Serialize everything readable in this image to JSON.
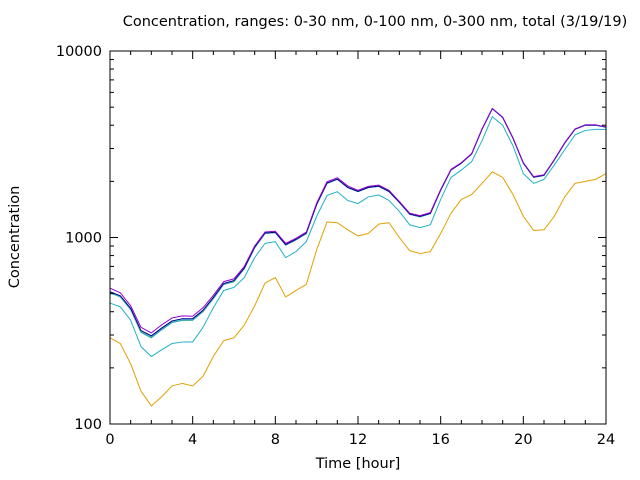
{
  "chart_data": {
    "type": "line",
    "title": "Concentration, ranges: 0-30 nm, 0-100 nm, 0-300 nm, total (3/19/19)",
    "xlabel": "Time [hour]",
    "ylabel": "Concentration",
    "xlim": [
      0,
      24
    ],
    "ylim": [
      100,
      10000
    ],
    "yscale": "log",
    "grid": false,
    "x_ticks": [
      0,
      4,
      8,
      12,
      16,
      20,
      24
    ],
    "y_ticks": [
      100,
      1000,
      10000
    ],
    "x": [
      0,
      0.5,
      1,
      1.5,
      2,
      2.5,
      3,
      3.5,
      4,
      4.5,
      5,
      5.5,
      6,
      6.5,
      7,
      7.5,
      8,
      8.5,
      9,
      9.5,
      10,
      10.5,
      11,
      11.5,
      12,
      12.5,
      13,
      13.5,
      14,
      14.5,
      15,
      15.5,
      16,
      16.5,
      17,
      17.5,
      18,
      18.5,
      19,
      19.5,
      20,
      20.5,
      21,
      21.5,
      22,
      22.5,
      23,
      23.5,
      24
    ],
    "series": [
      {
        "color": "#e0a000",
        "values": [
          290,
          270,
          210,
          150,
          125,
          140,
          160,
          165,
          160,
          180,
          230,
          280,
          290,
          340,
          430,
          570,
          610,
          480,
          520,
          560,
          860,
          1210,
          1200,
          1100,
          1020,
          1050,
          1180,
          1200,
          1000,
          850,
          820,
          840,
          1050,
          1350,
          1600,
          1700,
          1950,
          2250,
          2100,
          1700,
          1300,
          1090,
          1100,
          1300,
          1650,
          1950,
          2000,
          2050,
          2200
        ]
      },
      {
        "color": "#20b0c8",
        "values": [
          445,
          425,
          360,
          260,
          230,
          250,
          270,
          275,
          275,
          330,
          420,
          520,
          540,
          610,
          780,
          930,
          950,
          780,
          840,
          950,
          1300,
          1680,
          1760,
          1580,
          1520,
          1650,
          1690,
          1580,
          1380,
          1170,
          1130,
          1170,
          1600,
          2100,
          2300,
          2550,
          3300,
          4450,
          4000,
          3100,
          2200,
          1950,
          2050,
          2450,
          2950,
          3550,
          3750,
          3800,
          3800
        ]
      },
      {
        "color": "#009e73",
        "values": [
          505,
          480,
          410,
          310,
          290,
          320,
          350,
          360,
          360,
          400,
          470,
          560,
          580,
          680,
          880,
          1050,
          1060,
          910,
          970,
          1050,
          1500,
          1950,
          2050,
          1850,
          1760,
          1850,
          1880,
          1760,
          1540,
          1330,
          1290,
          1340,
          1790,
          2300,
          2500,
          2800,
          3800,
          4900,
          4400,
          3400,
          2500,
          2100,
          2150,
          2600,
          3200,
          3800,
          4000,
          4000,
          3900
        ]
      },
      {
        "color": "#56b4e9",
        "values": [
          508,
          483,
          413,
          313,
          293,
          323,
          353,
          363,
          363,
          403,
          473,
          563,
          583,
          683,
          883,
          1053,
          1063,
          913,
          973,
          1053,
          1503,
          1953,
          2053,
          1853,
          1763,
          1853,
          1883,
          1763,
          1543,
          1333,
          1293,
          1343,
          1793,
          2303,
          2503,
          2803,
          3803,
          4903,
          4403,
          3403,
          2503,
          2103,
          2153,
          2603,
          3203,
          3803,
          4003,
          4003,
          3903
        ]
      },
      {
        "color": "#000080",
        "values": [
          512,
          487,
          417,
          317,
          297,
          327,
          357,
          367,
          367,
          407,
          477,
          567,
          587,
          687,
          887,
          1057,
          1067,
          917,
          977,
          1057,
          1507,
          1957,
          2057,
          1857,
          1767,
          1857,
          1887,
          1767,
          1547,
          1337,
          1297,
          1347,
          1797,
          2307,
          2507,
          2807,
          3807,
          4907,
          4407,
          3407,
          2507,
          2107,
          2157,
          2607,
          3207,
          3807,
          4007,
          4007,
          3907
        ]
      },
      {
        "color": "#9400d3",
        "values": [
          535,
          505,
          430,
          330,
          308,
          340,
          370,
          380,
          378,
          420,
          490,
          580,
          600,
          700,
          900,
          1070,
          1080,
          930,
          990,
          1070,
          1530,
          1990,
          2090,
          1890,
          1790,
          1880,
          1910,
          1790,
          1560,
          1350,
          1310,
          1360,
          1810,
          2320,
          2520,
          2820,
          3820,
          4920,
          4420,
          3420,
          2520,
          2120,
          2170,
          2620,
          3220,
          3820,
          4020,
          4020,
          3920
        ]
      }
    ]
  }
}
